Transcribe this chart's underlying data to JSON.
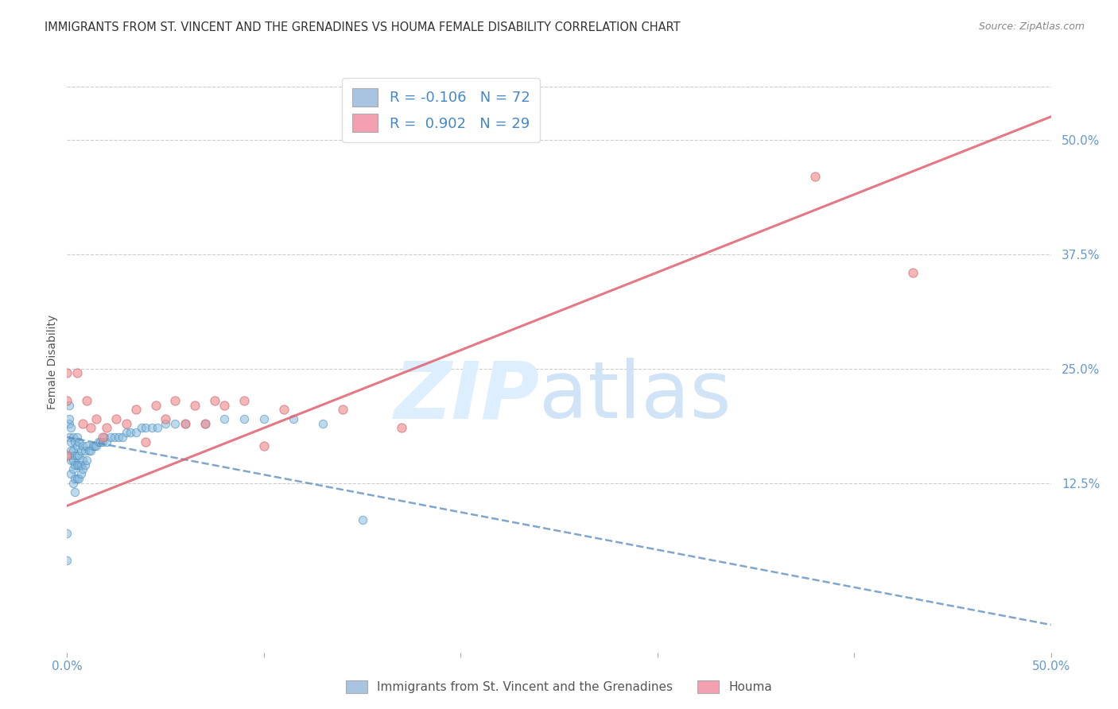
{
  "title": "IMMIGRANTS FROM ST. VINCENT AND THE GRENADINES VS HOUMA FEMALE DISABILITY CORRELATION CHART",
  "source": "Source: ZipAtlas.com",
  "ylabel": "Female Disability",
  "right_yticks": [
    "50.0%",
    "37.5%",
    "25.0%",
    "12.5%"
  ],
  "right_ytick_vals": [
    0.5,
    0.375,
    0.25,
    0.125
  ],
  "xmin": 0.0,
  "xmax": 0.5,
  "ymin": -0.06,
  "ymax": 0.575,
  "legend_r1": "R = -0.106",
  "legend_n1": "N = 72",
  "legend_r2": "R =  0.902",
  "legend_n2": "N = 29",
  "blue_color": "#a8c4e0",
  "pink_color": "#f4a0b0",
  "blue_line_color": "#5588bb",
  "pink_line_color": "#e06070",
  "blue_scatter_color": "#88bbdd",
  "pink_scatter_color": "#f09090",
  "blue_points_x": [
    0.0,
    0.0,
    0.001,
    0.001,
    0.001,
    0.001,
    0.001,
    0.002,
    0.002,
    0.002,
    0.002,
    0.002,
    0.003,
    0.003,
    0.003,
    0.003,
    0.003,
    0.004,
    0.004,
    0.004,
    0.004,
    0.004,
    0.005,
    0.005,
    0.005,
    0.005,
    0.005,
    0.006,
    0.006,
    0.006,
    0.006,
    0.007,
    0.007,
    0.007,
    0.008,
    0.008,
    0.008,
    0.009,
    0.009,
    0.01,
    0.01,
    0.011,
    0.012,
    0.013,
    0.014,
    0.015,
    0.016,
    0.017,
    0.018,
    0.019,
    0.02,
    0.022,
    0.024,
    0.026,
    0.028,
    0.03,
    0.032,
    0.035,
    0.038,
    0.04,
    0.043,
    0.046,
    0.05,
    0.055,
    0.06,
    0.07,
    0.08,
    0.09,
    0.1,
    0.115,
    0.13,
    0.15
  ],
  "blue_points_y": [
    0.04,
    0.07,
    0.155,
    0.175,
    0.19,
    0.195,
    0.21,
    0.135,
    0.15,
    0.16,
    0.17,
    0.185,
    0.125,
    0.14,
    0.15,
    0.16,
    0.175,
    0.115,
    0.13,
    0.145,
    0.155,
    0.17,
    0.13,
    0.145,
    0.155,
    0.165,
    0.175,
    0.13,
    0.145,
    0.155,
    0.17,
    0.135,
    0.145,
    0.16,
    0.14,
    0.15,
    0.165,
    0.145,
    0.16,
    0.15,
    0.165,
    0.16,
    0.16,
    0.165,
    0.165,
    0.165,
    0.17,
    0.17,
    0.17,
    0.175,
    0.17,
    0.175,
    0.175,
    0.175,
    0.175,
    0.18,
    0.18,
    0.18,
    0.185,
    0.185,
    0.185,
    0.185,
    0.19,
    0.19,
    0.19,
    0.19,
    0.195,
    0.195,
    0.195,
    0.195,
    0.19,
    0.085
  ],
  "pink_points_x": [
    0.0,
    0.0,
    0.0,
    0.005,
    0.008,
    0.01,
    0.012,
    0.015,
    0.018,
    0.02,
    0.025,
    0.03,
    0.035,
    0.04,
    0.045,
    0.05,
    0.055,
    0.06,
    0.065,
    0.07,
    0.075,
    0.08,
    0.09,
    0.1,
    0.11,
    0.14,
    0.17,
    0.38,
    0.43
  ],
  "pink_points_y": [
    0.245,
    0.215,
    0.155,
    0.245,
    0.19,
    0.215,
    0.185,
    0.195,
    0.175,
    0.185,
    0.195,
    0.19,
    0.205,
    0.17,
    0.21,
    0.195,
    0.215,
    0.19,
    0.21,
    0.19,
    0.215,
    0.21,
    0.215,
    0.165,
    0.205,
    0.205,
    0.185,
    0.46,
    0.355
  ],
  "blue_trend_x": [
    0.0,
    0.5
  ],
  "blue_trend_y": [
    0.175,
    -0.03
  ],
  "pink_trend_x": [
    0.0,
    0.5
  ],
  "pink_trend_y": [
    0.1,
    0.525
  ]
}
